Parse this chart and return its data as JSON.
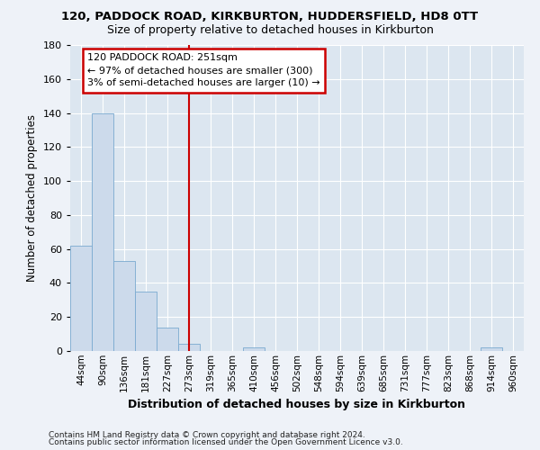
{
  "title_line1": "120, PADDOCK ROAD, KIRKBURTON, HUDDERSFIELD, HD8 0TT",
  "title_line2": "Size of property relative to detached houses in Kirkburton",
  "xlabel": "Distribution of detached houses by size in Kirkburton",
  "ylabel": "Number of detached properties",
  "footer_line1": "Contains HM Land Registry data © Crown copyright and database right 2024.",
  "footer_line2": "Contains public sector information licensed under the Open Government Licence v3.0.",
  "categories": [
    "44sqm",
    "90sqm",
    "136sqm",
    "181sqm",
    "227sqm",
    "273sqm",
    "319sqm",
    "365sqm",
    "410sqm",
    "456sqm",
    "502sqm",
    "548sqm",
    "594sqm",
    "639sqm",
    "685sqm",
    "731sqm",
    "777sqm",
    "823sqm",
    "868sqm",
    "914sqm",
    "960sqm"
  ],
  "values": [
    62,
    140,
    53,
    35,
    14,
    4,
    0,
    0,
    2,
    0,
    0,
    0,
    0,
    0,
    0,
    0,
    0,
    0,
    0,
    2,
    0
  ],
  "bar_color": "#ccdaeb",
  "bar_edge_color": "#7aaad0",
  "ylim": [
    0,
    180
  ],
  "yticks": [
    0,
    20,
    40,
    60,
    80,
    100,
    120,
    140,
    160,
    180
  ],
  "vline_x": 5,
  "vline_color": "#cc0000",
  "annotation_text": "120 PADDOCK ROAD: 251sqm\n← 97% of detached houses are smaller (300)\n3% of semi-detached houses are larger (10) →",
  "annotation_box_color": "#cc0000",
  "background_color": "#eef2f8",
  "plot_bg_color": "#dce6f0",
  "grid_color": "#ffffff",
  "title_fontsize": 9.5,
  "subtitle_fontsize": 9,
  "ylabel_fontsize": 8.5,
  "xlabel_fontsize": 9,
  "tick_fontsize": 7.5,
  "annotation_fontsize": 8
}
